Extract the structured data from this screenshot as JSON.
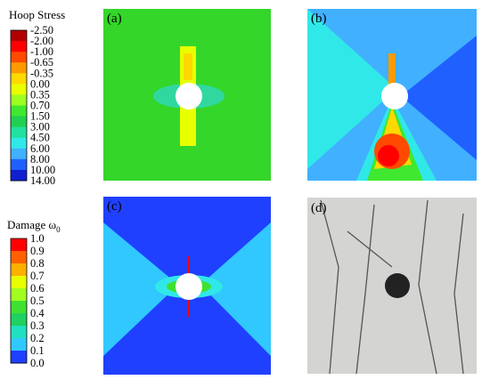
{
  "panels": [
    {
      "label": "(a)"
    },
    {
      "label": "(b)"
    },
    {
      "label": "(c)"
    },
    {
      "label": "(d)"
    }
  ],
  "hoop_legend": {
    "title": "Hoop Stress",
    "levels": [
      "-2.50",
      "-2.00",
      "-1.00",
      "-0.65",
      "-0.35",
      "0.00",
      "0.35",
      "0.70",
      "1.50",
      "3.00",
      "4.50",
      "6.00",
      "8.00",
      "10.00",
      "14.00"
    ],
    "colors": [
      "#b00000",
      "#ff0000",
      "#ff4a00",
      "#ff9a00",
      "#ffd800",
      "#e8ff00",
      "#9cff20",
      "#40e830",
      "#20d050",
      "#20e0a0",
      "#30e8e8",
      "#40b0ff",
      "#2060ff",
      "#1020d0"
    ]
  },
  "damage_legend": {
    "title": "Damage ω",
    "subscript": "0",
    "levels": [
      "1.0",
      "0.9",
      "0.8",
      "0.7",
      "0.6",
      "0.5",
      "0.4",
      "0.3",
      "0.2",
      "0.1",
      "0.0"
    ],
    "colors": [
      "#ff0000",
      "#ff6000",
      "#ffb000",
      "#e8ff00",
      "#a0ff20",
      "#40e030",
      "#20d060",
      "#20e0c0",
      "#30c8ff",
      "#2040ff"
    ]
  }
}
